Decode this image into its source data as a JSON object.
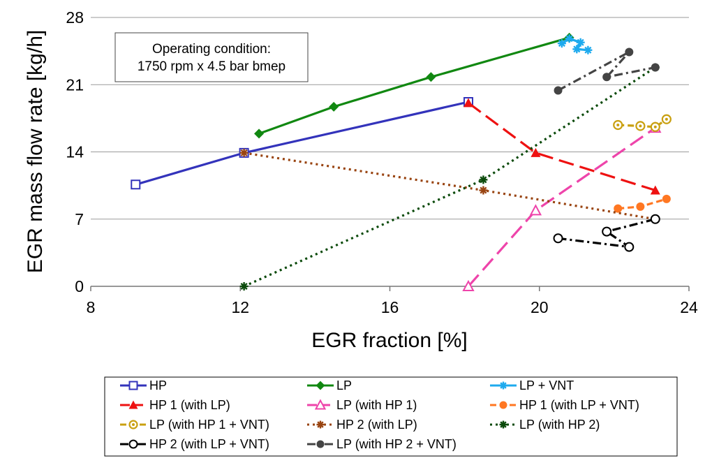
{
  "chart_data": {
    "type": "line",
    "xlabel": "EGR fraction [%]",
    "ylabel": "EGR mass flow rate [kg/h]",
    "xlim": [
      8,
      24
    ],
    "ylim": [
      0,
      28
    ],
    "x_ticks": [
      "8",
      "12",
      "16",
      "20",
      "24"
    ],
    "y_ticks": [
      "0",
      "7",
      "14",
      "21",
      "28"
    ],
    "grid": "horizontal",
    "legend_position": "bottom",
    "annotation": [
      "Operating condition:",
      "1750 rpm x 4.5 bar bmep"
    ],
    "series": [
      {
        "name": "HP",
        "color": "#3333bb",
        "dash": "solid",
        "marker": "square-open",
        "points": [
          [
            9.2,
            10.6
          ],
          [
            12.1,
            13.9
          ],
          [
            18.1,
            19.2
          ]
        ]
      },
      {
        "name": "LP",
        "color": "#118811",
        "dash": "solid",
        "marker": "diamond-filled",
        "points": [
          [
            12.5,
            15.9
          ],
          [
            14.5,
            18.7
          ],
          [
            17.1,
            21.8
          ],
          [
            20.8,
            25.9
          ]
        ]
      },
      {
        "name": "LP + VNT",
        "color": "#1eaaee",
        "dash": "solid",
        "marker": "asterisk",
        "points": [
          [
            20.6,
            25.3
          ],
          [
            20.8,
            25.8
          ],
          [
            21.1,
            25.4
          ],
          [
            21.0,
            24.7
          ],
          [
            21.3,
            24.6
          ]
        ]
      },
      {
        "name": "HP 1 (with LP)",
        "color": "#ee1111",
        "dash": "longdash",
        "marker": "triangle-filled",
        "points": [
          [
            18.1,
            19.1
          ],
          [
            19.9,
            13.9
          ],
          [
            23.1,
            10.0
          ]
        ]
      },
      {
        "name": "LP (with HP 1)",
        "color": "#ee44aa",
        "dash": "longdash",
        "marker": "triangle-open",
        "points": [
          [
            18.1,
            0.0
          ],
          [
            19.9,
            7.9
          ],
          [
            23.1,
            16.5
          ]
        ]
      },
      {
        "name": "HP 1 (with LP + VNT)",
        "color": "#ff7722",
        "dash": "dashed",
        "marker": "circle-filled",
        "points": [
          [
            22.1,
            8.1
          ],
          [
            22.7,
            8.3
          ],
          [
            23.4,
            9.1
          ]
        ]
      },
      {
        "name": "LP (with HP 1 + VNT)",
        "color": "#c9a010",
        "dash": "dashed",
        "marker": "circle-open-dot",
        "points": [
          [
            22.1,
            16.8
          ],
          [
            22.7,
            16.7
          ],
          [
            23.1,
            16.6
          ],
          [
            23.4,
            17.4
          ]
        ]
      },
      {
        "name": "HP 2 (with LP)",
        "color": "#994411",
        "dash": "dotted",
        "marker": "asterisk",
        "points": [
          [
            12.1,
            13.9
          ],
          [
            18.5,
            10.0
          ],
          [
            23.1,
            7.0
          ]
        ]
      },
      {
        "name": "LP (with HP 2)",
        "color": "#0b4a0b",
        "dash": "dotted",
        "marker": "asterisk",
        "points": [
          [
            12.1,
            0.0
          ],
          [
            18.5,
            11.1
          ],
          [
            23.1,
            22.8
          ]
        ]
      },
      {
        "name": "HP 2 (with LP + VNT)",
        "color": "#000000",
        "dash": "dashdot",
        "marker": "circle-open",
        "points": [
          [
            20.5,
            5.0
          ],
          [
            22.4,
            4.1
          ],
          [
            21.8,
            5.7
          ],
          [
            23.1,
            7.0
          ]
        ]
      },
      {
        "name": "LP (with HP 2 + VNT)",
        "color": "#444444",
        "dash": "dashdot",
        "marker": "circle-filled",
        "points": [
          [
            20.5,
            20.4
          ],
          [
            22.4,
            24.4
          ],
          [
            21.8,
            21.8
          ],
          [
            23.1,
            22.8
          ]
        ]
      }
    ]
  }
}
